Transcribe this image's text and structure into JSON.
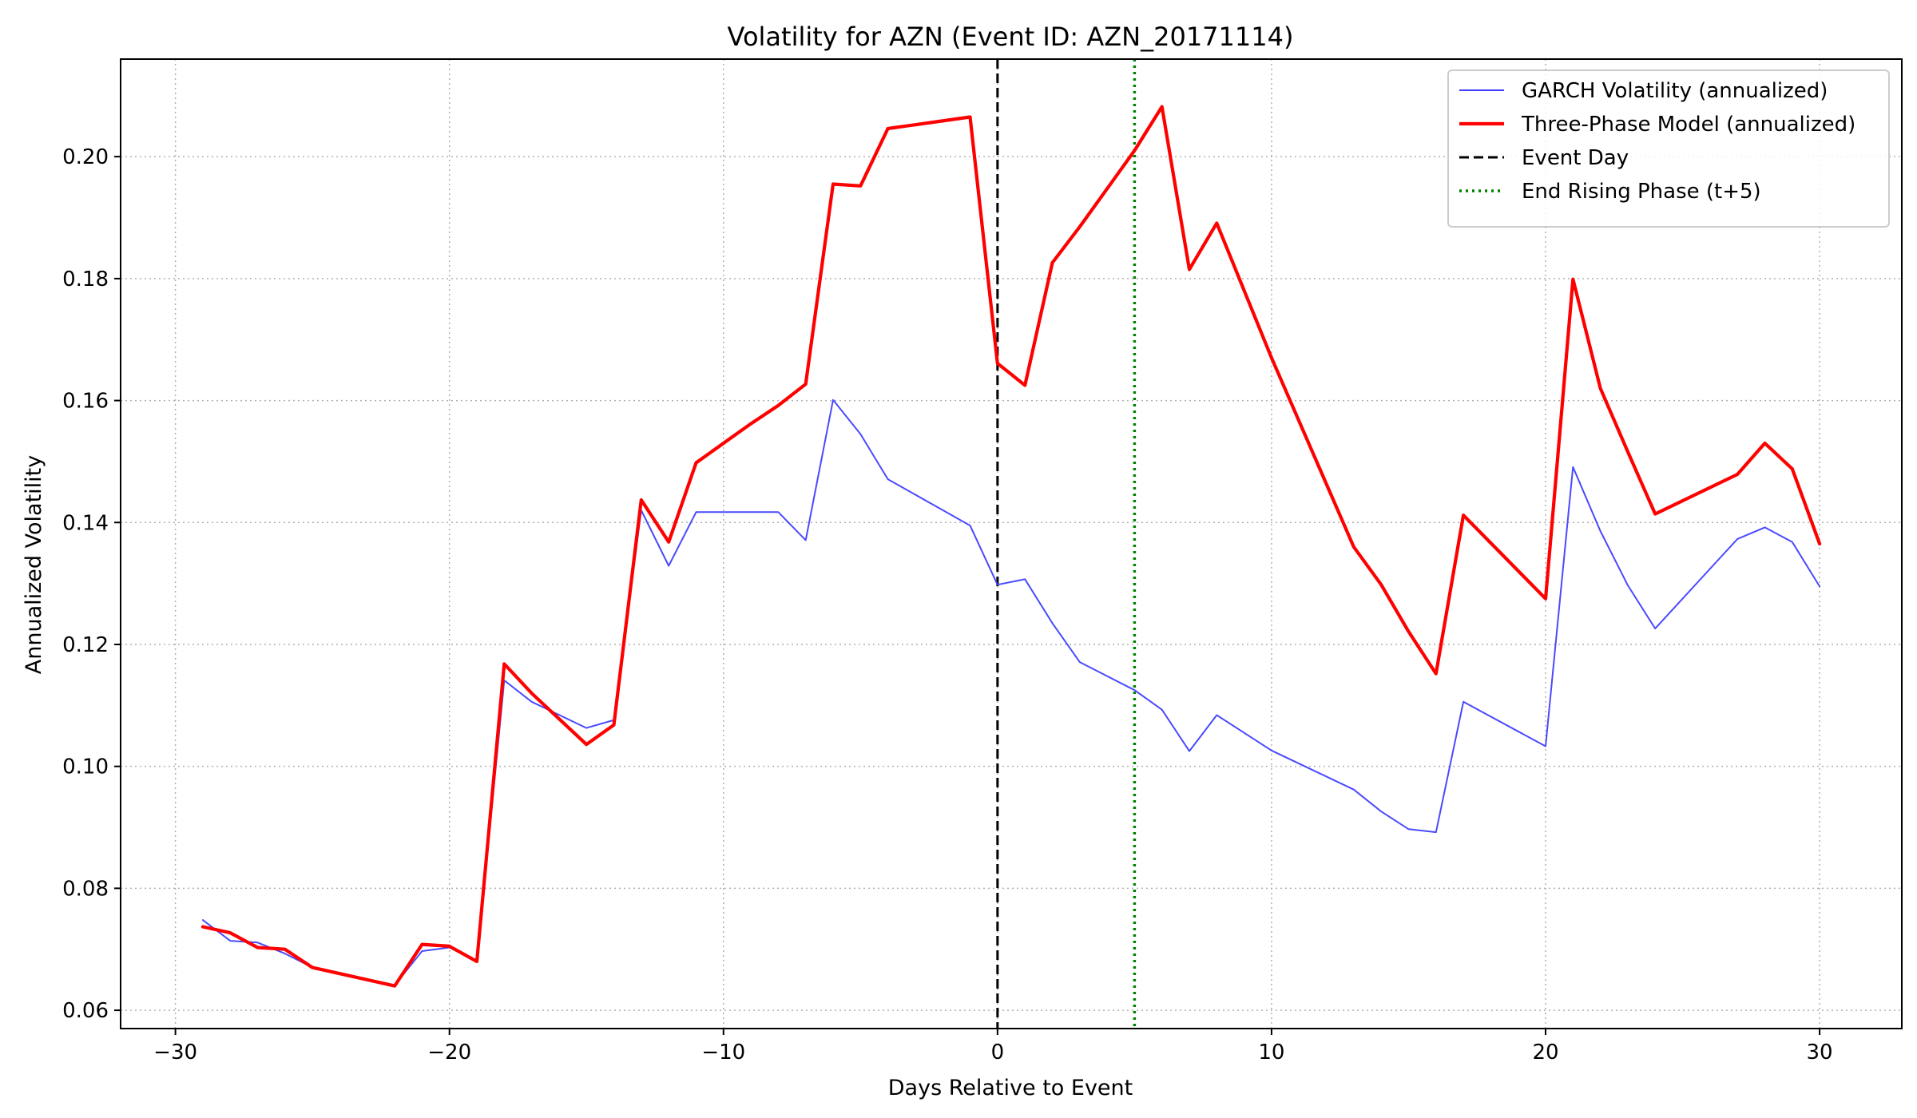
{
  "chart_data": {
    "type": "line",
    "title": "Volatility for AZN (Event ID: AZN_20171114)",
    "xlabel": "Days Relative to Event",
    "ylabel": "Annualized Volatility",
    "xlim": [
      -32,
      33
    ],
    "ylim": [
      0.057,
      0.216
    ],
    "xticks": [
      -30,
      -20,
      -10,
      0,
      10,
      20,
      30
    ],
    "xtick_labels": [
      "−30",
      "−20",
      "−10",
      "0",
      "10",
      "20",
      "30"
    ],
    "yticks": [
      0.06,
      0.08,
      0.1,
      0.12,
      0.14,
      0.16,
      0.18,
      0.2
    ],
    "ytick_labels": [
      "0.06",
      "0.08",
      "0.10",
      "0.12",
      "0.14",
      "0.16",
      "0.18",
      "0.20"
    ],
    "grid": true,
    "legend_position": "top-right",
    "series": [
      {
        "name": "GARCH Volatility (annualized)",
        "color": "#4040ff",
        "style": "solid",
        "x": [
          -29,
          -28,
          -27,
          -26,
          -25,
          -22,
          -21,
          -20,
          -19,
          -18,
          -17,
          -15,
          -14,
          -13,
          -12,
          -11,
          -10,
          -9,
          -8,
          -7,
          -6,
          -5,
          -4,
          -1,
          0,
          1,
          2,
          3,
          5,
          6,
          7,
          8,
          10,
          13,
          14,
          15,
          16,
          17,
          20,
          21,
          22,
          23,
          24,
          27,
          28,
          29,
          30
        ],
        "values": [
          0.0748,
          0.0714,
          0.0711,
          0.0693,
          0.067,
          0.0641,
          0.0697,
          0.0703,
          0.068,
          0.1141,
          0.1106,
          0.1063,
          0.1076,
          0.142,
          0.1329,
          0.1417,
          0.1417,
          0.1417,
          0.1417,
          0.1371,
          0.1601,
          0.1545,
          0.1471,
          0.1395,
          0.1298,
          0.1307,
          0.1235,
          0.1171,
          0.1125,
          0.1093,
          0.1025,
          0.1084,
          0.1026,
          0.0962,
          0.0926,
          0.0897,
          0.0892,
          0.1106,
          0.1033,
          0.1491,
          0.1386,
          0.1297,
          0.1226,
          0.1373,
          0.1392,
          0.1368,
          0.1295
        ]
      },
      {
        "name": "Three-Phase Model (annualized)",
        "color": "#ff0000",
        "style": "solid",
        "x": [
          -29,
          -28,
          -27,
          -26,
          -25,
          -22,
          -21,
          -20,
          -19,
          -18,
          -17,
          -15,
          -14,
          -13,
          -12,
          -11,
          -10,
          -9,
          -8,
          -7,
          -6,
          -5,
          -4,
          -1,
          0,
          1,
          2,
          3,
          5,
          6,
          7,
          8,
          10,
          13,
          14,
          15,
          16,
          17,
          20,
          21,
          22,
          23,
          24,
          27,
          28,
          29,
          30
        ],
        "values": [
          0.0737,
          0.0727,
          0.0703,
          0.07,
          0.067,
          0.064,
          0.0708,
          0.0705,
          0.068,
          0.1168,
          0.112,
          0.1036,
          0.1068,
          0.1437,
          0.1368,
          0.1498,
          0.153,
          0.1562,
          0.1592,
          0.1627,
          0.1955,
          0.1952,
          0.2046,
          0.2065,
          0.1661,
          0.1625,
          0.1826,
          0.1885,
          0.201,
          0.2082,
          0.1815,
          0.1891,
          0.167,
          0.136,
          0.1298,
          0.1221,
          0.1152,
          0.1412,
          0.1275,
          0.1799,
          0.162,
          0.1516,
          0.1414,
          0.1479,
          0.153,
          0.1488,
          0.1365
        ]
      },
      {
        "name": "Event Day",
        "color": "#000000",
        "style": "dashed",
        "vline_x": 0
      },
      {
        "name": "End Rising Phase (t+5)",
        "color": "#008000",
        "style": "dotted",
        "vline_x": 5
      }
    ]
  }
}
